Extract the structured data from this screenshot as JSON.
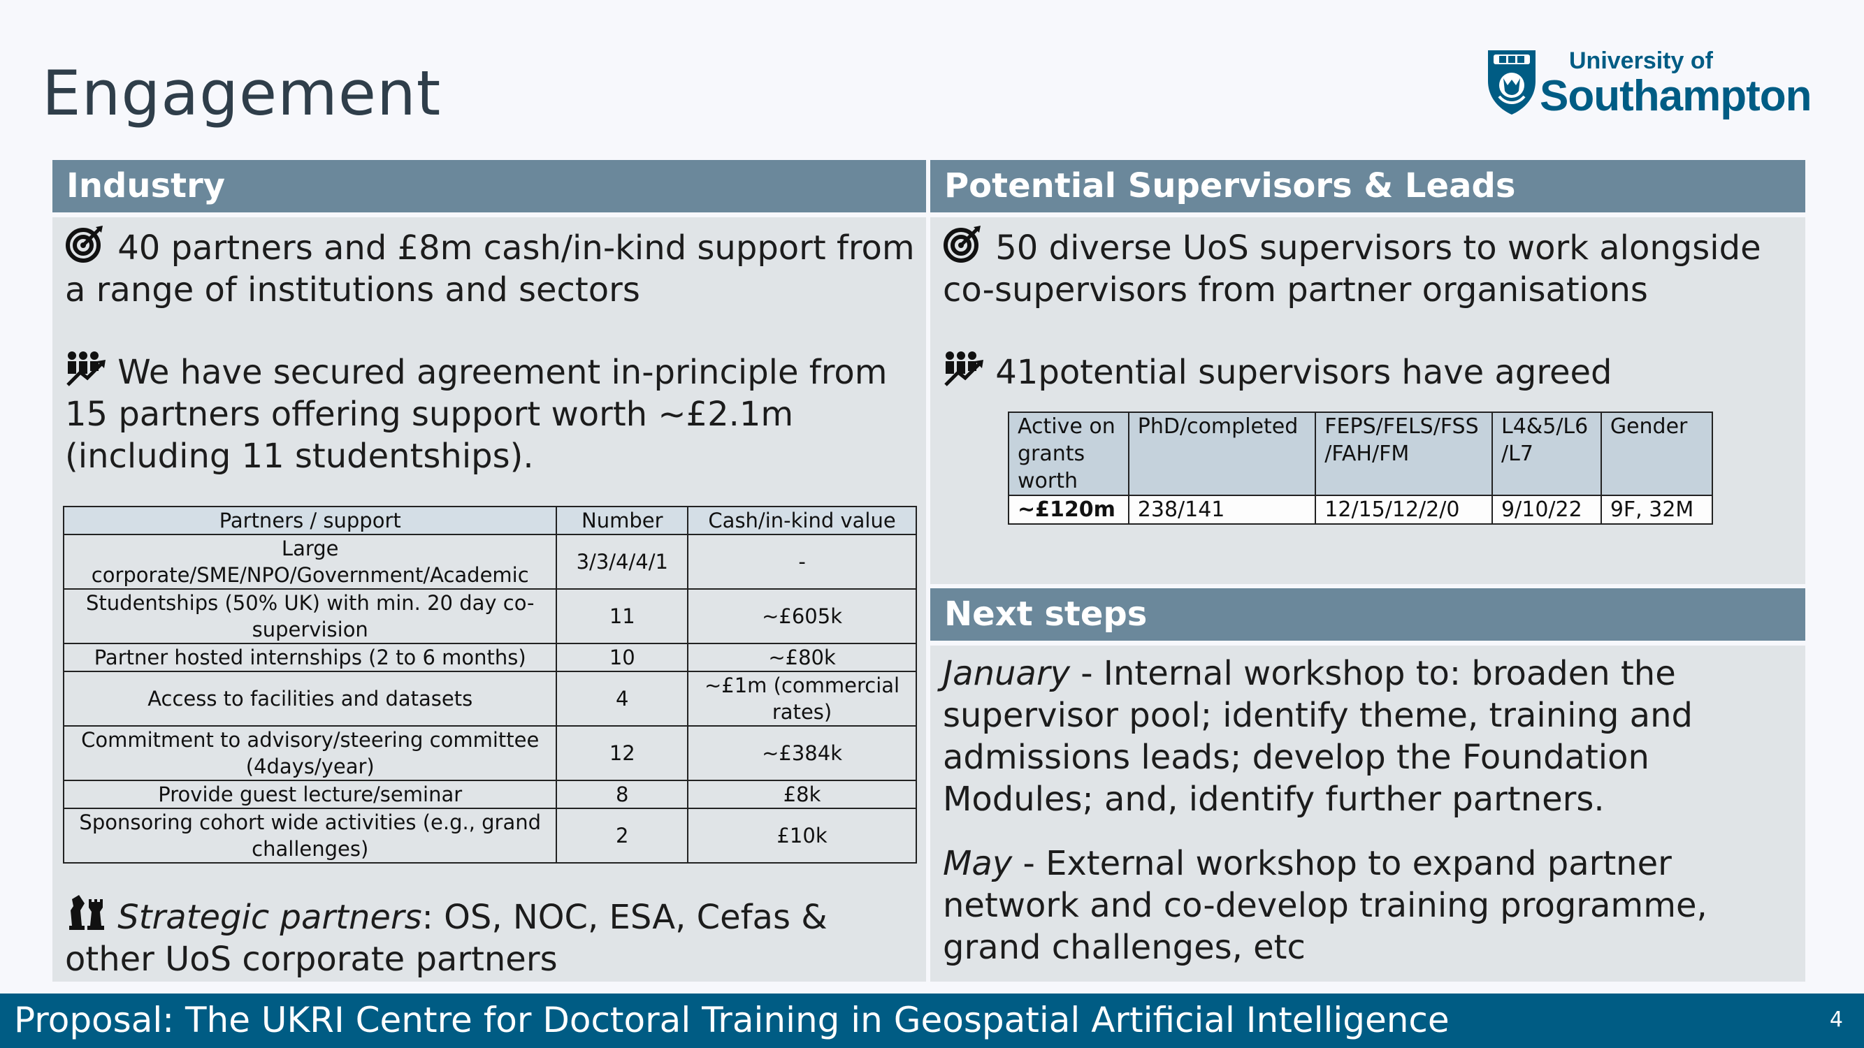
{
  "title": "Engagement",
  "logo": {
    "line1": "University of",
    "line2": "Southampton"
  },
  "industry": {
    "heading": "Industry",
    "point1": "40 partners and £8m cash/in-kind support from a range of institutions and sectors",
    "point2": "We have secured agreement in-principle from 15 partners offering support worth ~£2.1m (including 11 studentships).",
    "table": {
      "headers": [
        "Partners / support",
        "Number",
        "Cash/in-kind value"
      ],
      "rows": [
        [
          "Large corporate/SME/NPO/Government/Academic",
          "3/3/4/4/1",
          "-"
        ],
        [
          "Studentships (50% UK) with min. 20 day co-supervision",
          "11",
          "~£605k"
        ],
        [
          "Partner hosted internships (2 to 6 months)",
          "10",
          "~£80k"
        ],
        [
          "Access to facilities and datasets",
          "4",
          "~£1m (commercial rates)"
        ],
        [
          "Commitment to advisory/steering committee (4days/year)",
          "12",
          "~£384k"
        ],
        [
          "Provide guest lecture/seminar",
          "8",
          "£8k"
        ],
        [
          "Sponsoring cohort wide activities (e.g., grand challenges)",
          "2",
          "£10k"
        ]
      ]
    },
    "strategic_label": "Strategic partners",
    "strategic_text": ": OS, NOC, ESA, Cefas & other UoS corporate partners"
  },
  "supervisors": {
    "heading": "Potential Supervisors & Leads",
    "point1": "50 diverse UoS supervisors to work alongside co-supervisors from partner organisations",
    "point2": "41potential supervisors have agreed",
    "table": {
      "headers": [
        "Active on grants worth",
        "PhD/completed",
        "FEPS/FELS/FSS /FAH/FM",
        "L4&5/L6 /L7",
        "Gender"
      ],
      "row": [
        "~£120m",
        "238/141",
        "12/15/12/2/0",
        "9/10/22",
        "9F, 32M"
      ]
    }
  },
  "next_steps": {
    "heading": "Next steps",
    "jan_label": "January",
    "jan_text": " - Internal workshop to: broaden the supervisor pool; identify theme, training and admissions leads; develop the Foundation Modules; and, identify further partners.",
    "may_label": "May",
    "may_text": " - External workshop to expand partner network and co-develop training programme, grand challenges, etc"
  },
  "footer": {
    "text": "Proposal: The UKRI Centre for Doctoral Training in Geospatial Artificial Intelligence",
    "page": "4"
  },
  "icons": [
    "target-icon",
    "people-growth-icon",
    "chess-icon",
    "university-crest-icon"
  ],
  "colors": {
    "header": "#6b889b",
    "panel": "#e0e4e7",
    "footer": "#005c84",
    "brand": "#005c84"
  }
}
